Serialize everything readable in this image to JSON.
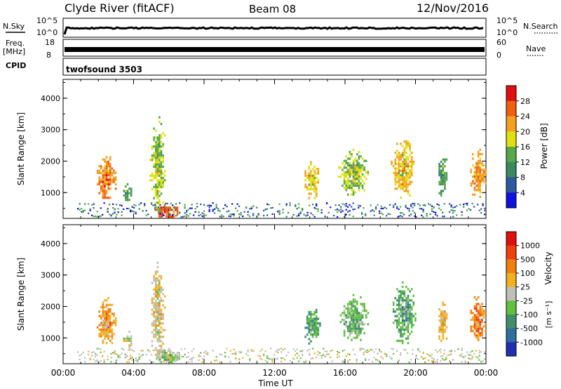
{
  "header": {
    "station": "Clyde River (fitACF)",
    "beam": "Beam 08",
    "date": "12/Nov/2016"
  },
  "top_panels": {
    "nsky_label": "N.Sky",
    "nsearch_label": "N.Search",
    "noise_ticks": [
      "10^5",
      "10^0"
    ],
    "freq_label": "Freq.",
    "freq_unit": "[MHz]",
    "freq_ticks": [
      "18",
      "8"
    ],
    "nave_label": "Nave",
    "nave_ticks": [
      "60",
      "0"
    ],
    "cpid_label": "CPID",
    "cpid_value": "twofsound 3503"
  },
  "x_axis": {
    "label": "Time UT",
    "ticks": [
      "00:00",
      "04:00",
      "08:00",
      "12:00",
      "16:00",
      "20:00",
      "00:00"
    ]
  },
  "colorbars": {
    "power": {
      "label": "Power [dB]",
      "ticks": [
        "28",
        "24",
        "20",
        "16",
        "12",
        "8",
        "4"
      ],
      "colors": [
        "#1010e0",
        "#2c5aa0",
        "#3a8a60",
        "#56a848",
        "#e0e010",
        "#f5a020",
        "#f06010",
        "#e01010"
      ]
    },
    "velocity": {
      "label": "Velocity",
      "unit": "[m s⁻¹]",
      "ticks": [
        "1000",
        "500",
        "100",
        "25",
        "-25",
        "-100",
        "-500",
        "-1000"
      ],
      "colors": [
        "#2030b0",
        "#2f6fa0",
        "#3f8f68",
        "#60c040",
        "#c0c0b8",
        "#f0b020",
        "#f08010",
        "#f04010",
        "#e01010"
      ]
    }
  },
  "chart_data": [
    {
      "type": "heatmap",
      "title": "Power",
      "ylabel": "Slant Range [km]",
      "xlabel": "Time UT",
      "xlim": [
        0,
        24
      ],
      "ylim": [
        180,
        4600
      ],
      "yticks": [
        1000,
        2000,
        3000,
        4000
      ],
      "colorbar_label": "Power [dB]",
      "colorbar_range": [
        0,
        32
      ],
      "echo_regions": [
        {
          "t": [
            1.8,
            3.0
          ],
          "r": [
            700,
            2300
          ],
          "value": 24
        },
        {
          "t": [
            3.3,
            3.9
          ],
          "r": [
            700,
            1300
          ],
          "value": 12
        },
        {
          "t": [
            4.9,
            5.8
          ],
          "r": [
            300,
            3500
          ],
          "value": 16
        },
        {
          "t": [
            5.2,
            6.6
          ],
          "r": [
            180,
            700
          ],
          "value": 26
        },
        {
          "t": [
            13.6,
            14.6
          ],
          "r": [
            800,
            2000
          ],
          "value": 20
        },
        {
          "t": [
            15.6,
            17.3
          ],
          "r": [
            900,
            2400
          ],
          "value": 16
        },
        {
          "t": [
            18.6,
            20.0
          ],
          "r": [
            800,
            2800
          ],
          "value": 20
        },
        {
          "t": [
            21.2,
            21.8
          ],
          "r": [
            800,
            2300
          ],
          "value": 12
        },
        {
          "t": [
            23.0,
            24.0
          ],
          "r": [
            800,
            2400
          ],
          "value": 22
        }
      ]
    },
    {
      "type": "heatmap",
      "title": "Velocity",
      "ylabel": "Slant Range [km]",
      "xlabel": "Time UT",
      "xlim": [
        0,
        24
      ],
      "ylim": [
        180,
        4600
      ],
      "yticks": [
        1000,
        2000,
        3000,
        4000
      ],
      "colorbar_label": "Velocity [m s-1]",
      "colorbar_range": [
        -1000,
        1000
      ],
      "echo_regions": [
        {
          "t": [
            1.8,
            3.0
          ],
          "r": [
            700,
            2300
          ],
          "value": 300
        },
        {
          "t": [
            3.3,
            3.9
          ],
          "r": [
            700,
            1300
          ],
          "value": 50
        },
        {
          "t": [
            4.9,
            5.8
          ],
          "r": [
            300,
            3500
          ],
          "value": 100
        },
        {
          "t": [
            5.2,
            6.6
          ],
          "r": [
            180,
            700
          ],
          "value": -100
        },
        {
          "t": [
            13.6,
            14.6
          ],
          "r": [
            800,
            2000
          ],
          "value": -400
        },
        {
          "t": [
            15.6,
            17.3
          ],
          "r": [
            900,
            2400
          ],
          "value": -200
        },
        {
          "t": [
            18.6,
            20.0
          ],
          "r": [
            800,
            2800
          ],
          "value": -300
        },
        {
          "t": [
            21.2,
            21.8
          ],
          "r": [
            800,
            2300
          ],
          "value": 200
        },
        {
          "t": [
            23.0,
            24.0
          ],
          "r": [
            800,
            2400
          ],
          "value": 400
        }
      ]
    }
  ]
}
